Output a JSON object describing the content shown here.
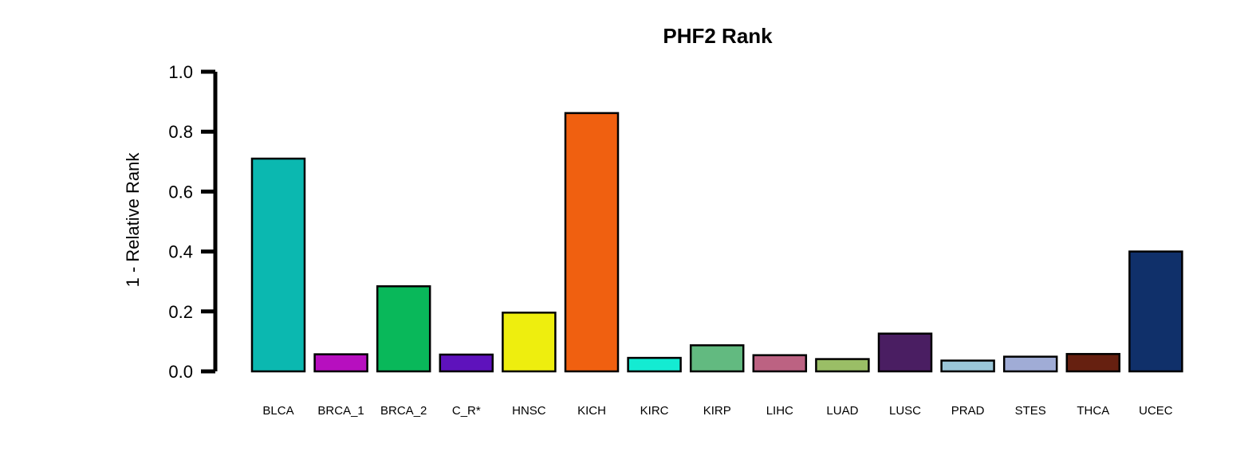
{
  "chart_data": {
    "type": "bar",
    "title": "PHF2 Rank",
    "xlabel": "",
    "ylabel": "1 - Relative Rank",
    "ylim": [
      0,
      1
    ],
    "yticks": [
      "0.0",
      "0.2",
      "0.4",
      "0.6",
      "0.8",
      "1.0"
    ],
    "grid": false,
    "legend": "none",
    "categories": [
      "BLCA",
      "BRCA_1",
      "BRCA_2",
      "C_R*",
      "HNSC",
      "KICH",
      "KIRC",
      "KIRP",
      "LIHC",
      "LUAD",
      "LUSC",
      "PRAD",
      "STES",
      "THCA",
      "UCEC"
    ],
    "values": [
      0.71,
      0.057,
      0.284,
      0.056,
      0.196,
      0.862,
      0.045,
      0.087,
      0.054,
      0.041,
      0.126,
      0.036,
      0.049,
      0.058,
      0.4
    ],
    "colors": [
      "#0BB8B0",
      "#B70FBF",
      "#09B85A",
      "#5E12BC",
      "#EEEE0E",
      "#F06010",
      "#14EBD2",
      "#62BA80",
      "#BC6282",
      "#9ABE66",
      "#4A1E62",
      "#9AC6D8",
      "#A0ACD6",
      "#662010",
      "#10306A"
    ]
  }
}
